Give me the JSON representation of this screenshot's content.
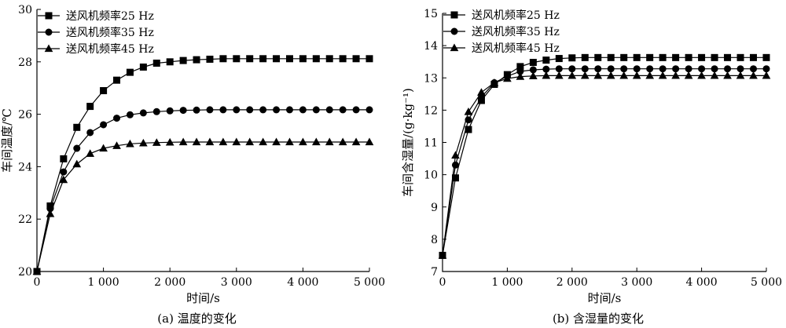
{
  "chart_data": [
    {
      "type": "line",
      "caption": "(a) 温度的变化",
      "xlabel": "时间/s",
      "ylabel": "车间温度/℃",
      "xlim": [
        0,
        5000
      ],
      "ylim": [
        20,
        30
      ],
      "xticks": [
        0,
        1000,
        2000,
        3000,
        4000,
        5000
      ],
      "xtick_labels": [
        "0",
        "1 000",
        "2 000",
        "3 000",
        "4 000",
        "5 000"
      ],
      "yticks": [
        20,
        22,
        24,
        26,
        28,
        30
      ],
      "ytick_labels": [
        "20",
        "22",
        "24",
        "26",
        "28",
        "30"
      ],
      "legend_position": "top-left",
      "grid": false,
      "x": [
        0,
        200,
        400,
        600,
        800,
        1000,
        1200,
        1400,
        1600,
        1800,
        2000,
        2200,
        2400,
        2600,
        2800,
        3000,
        3200,
        3400,
        3600,
        3800,
        4000,
        4200,
        4400,
        4600,
        4800,
        5000
      ],
      "series": [
        {
          "name": "送风机频率25 Hz",
          "marker": "square",
          "values": [
            20.0,
            22.5,
            24.3,
            25.5,
            26.3,
            26.9,
            27.3,
            27.6,
            27.8,
            27.95,
            28.0,
            28.05,
            28.08,
            28.1,
            28.12,
            28.12,
            28.12,
            28.12,
            28.12,
            28.12,
            28.12,
            28.12,
            28.12,
            28.12,
            28.12,
            28.12
          ]
        },
        {
          "name": "送风机频率35 Hz",
          "marker": "circle",
          "values": [
            20.0,
            22.4,
            23.8,
            24.7,
            25.3,
            25.6,
            25.85,
            25.98,
            26.05,
            26.1,
            26.13,
            26.15,
            26.16,
            26.17,
            26.17,
            26.17,
            26.17,
            26.17,
            26.17,
            26.17,
            26.17,
            26.17,
            26.17,
            26.17,
            26.17,
            26.17
          ]
        },
        {
          "name": "送风机频率45 Hz",
          "marker": "triangle",
          "values": [
            20.0,
            22.2,
            23.5,
            24.1,
            24.5,
            24.7,
            24.8,
            24.87,
            24.9,
            24.92,
            24.93,
            24.94,
            24.94,
            24.94,
            24.94,
            24.94,
            24.94,
            24.94,
            24.94,
            24.94,
            24.94,
            24.94,
            24.94,
            24.94,
            24.94,
            24.94
          ]
        }
      ]
    },
    {
      "type": "line",
      "caption": "(b) 含湿量的变化",
      "xlabel": "时间/s",
      "ylabel": "车间含湿量/(g·kg⁻¹)",
      "xlim": [
        0,
        5000
      ],
      "ylim": [
        7,
        15
      ],
      "xticks": [
        0,
        1000,
        2000,
        3000,
        4000,
        5000
      ],
      "xtick_labels": [
        "0",
        "1 000",
        "2 000",
        "3 000",
        "4 000",
        "5 000"
      ],
      "yticks": [
        7,
        8,
        9,
        10,
        11,
        12,
        13,
        14,
        15
      ],
      "ytick_labels": [
        "7",
        "8",
        "9",
        "10",
        "11",
        "12",
        "13",
        "14",
        "15"
      ],
      "legend_position": "top-left",
      "grid": false,
      "x": [
        0,
        200,
        400,
        600,
        800,
        1000,
        1200,
        1400,
        1600,
        1800,
        2000,
        2200,
        2400,
        2600,
        2800,
        3000,
        3200,
        3400,
        3600,
        3800,
        4000,
        4200,
        4400,
        4600,
        4800,
        5000
      ],
      "series": [
        {
          "name": "送风机频率25 Hz",
          "marker": "square",
          "values": [
            7.5,
            9.9,
            11.4,
            12.3,
            12.8,
            13.1,
            13.35,
            13.48,
            13.55,
            13.6,
            13.62,
            13.63,
            13.63,
            13.63,
            13.63,
            13.63,
            13.63,
            13.63,
            13.63,
            13.63,
            13.63,
            13.63,
            13.63,
            13.63,
            13.63,
            13.63
          ]
        },
        {
          "name": "送风机频率35 Hz",
          "marker": "circle",
          "values": [
            7.5,
            10.3,
            11.7,
            12.4,
            12.85,
            13.05,
            13.2,
            13.25,
            13.27,
            13.28,
            13.28,
            13.28,
            13.28,
            13.28,
            13.28,
            13.28,
            13.28,
            13.28,
            13.28,
            13.28,
            13.28,
            13.28,
            13.28,
            13.28,
            13.28,
            13.28
          ]
        },
        {
          "name": "送风机频率45 Hz",
          "marker": "triangle",
          "values": [
            7.5,
            10.6,
            11.95,
            12.55,
            12.85,
            12.98,
            13.04,
            13.06,
            13.07,
            13.07,
            13.07,
            13.07,
            13.07,
            13.07,
            13.07,
            13.07,
            13.07,
            13.07,
            13.07,
            13.07,
            13.07,
            13.07,
            13.07,
            13.07,
            13.07,
            13.07
          ]
        }
      ]
    }
  ]
}
